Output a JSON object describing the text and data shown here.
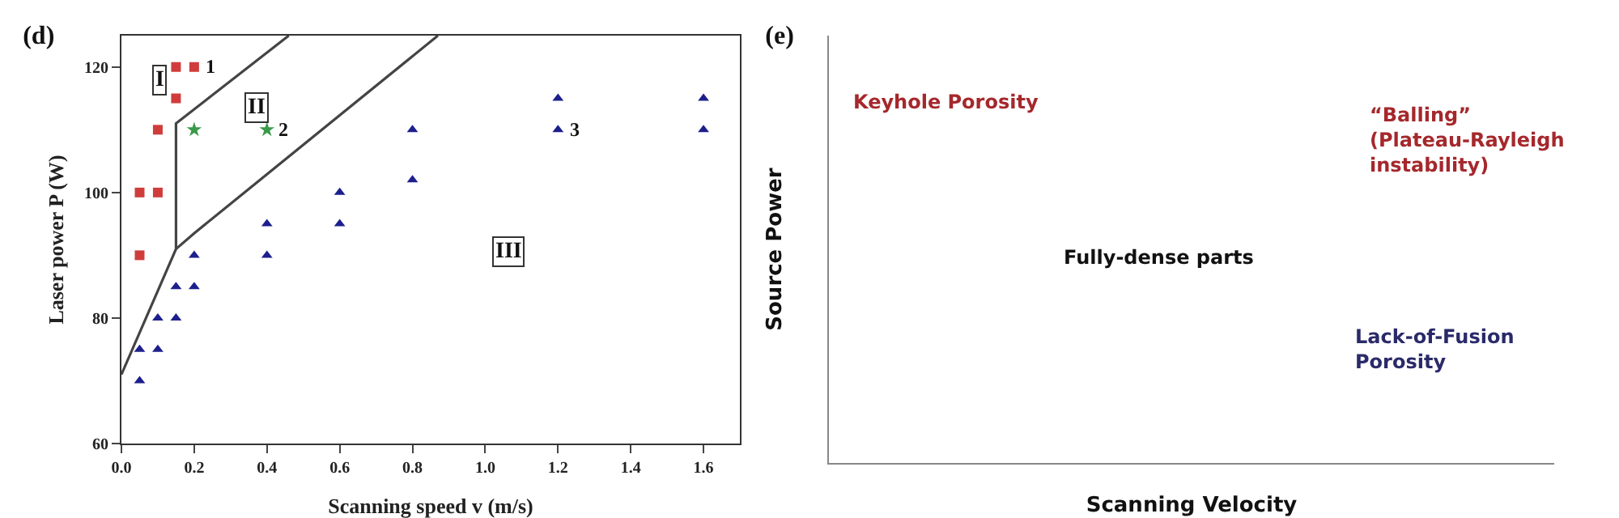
{
  "chart_data": [
    {
      "type": "scatter",
      "title": "(d)",
      "xlabel": "Scanning speed v (m/s)",
      "ylabel": "Laser power P (W)",
      "xlim": [
        0,
        1.7
      ],
      "xticks": [
        {
          "value": 0,
          "label": "0.0"
        },
        0.2,
        0.4,
        0.6,
        0.8,
        {
          "value": 1,
          "label": "1.0"
        },
        1.2,
        1.4,
        1.6
      ],
      "ylim": [
        60,
        125
      ],
      "yticks": [
        60,
        80,
        100,
        120
      ],
      "grid": false,
      "series": [
        {
          "color": "#d03c3c",
          "marker": "square",
          "x": [
            0.05,
            0.05,
            0.1,
            0.1,
            0.15,
            0.15,
            0.2
          ],
          "values": [
            90,
            100,
            100,
            110,
            115,
            120,
            120
          ]
        },
        {
          "color": "#3a9a4a",
          "marker": "star",
          "x": [
            0.2,
            0.4
          ],
          "values": [
            110,
            110
          ]
        },
        {
          "color": "#1c1f8c",
          "marker": "triangle",
          "x": [
            0.05,
            0.05,
            0.1,
            0.1,
            0.15,
            0.15,
            0.2,
            0.2,
            0.4,
            0.4,
            0.6,
            0.6,
            0.8,
            0.8,
            1.2,
            1.2,
            1.6,
            1.6
          ],
          "values": [
            70,
            75,
            75,
            80,
            80,
            85,
            85,
            90,
            90,
            95,
            95,
            100,
            102,
            110,
            110,
            115,
            110,
            115
          ]
        },
        {
          "type": "line",
          "color": "#444444",
          "marker": "none",
          "line_style": "solid",
          "x": [
            0,
            0.15,
            0.15,
            0.46
          ],
          "values": [
            71,
            91,
            111,
            125
          ]
        },
        {
          "type": "line",
          "color": "#444444",
          "marker": "none",
          "line_style": "solid",
          "x": [
            0.15,
            0.2,
            0.87
          ],
          "values": [
            91,
            93.5,
            125
          ]
        }
      ],
      "annotations": [
        {
          "text": "1",
          "x": 0.2,
          "y": 120
        },
        {
          "text": "2",
          "x": 0.4,
          "y": 110
        },
        {
          "text": "3",
          "x": 1.2,
          "y": 110
        },
        "I",
        "II",
        "III"
      ]
    },
    {
      "type": "other",
      "title": "(e)",
      "xlabel": "Scanning Velocity",
      "ylabel": "Source Power",
      "annotations": [
        "Keyhole Porosity",
        "“Balling” (Plateau-Rayleigh instability)",
        "Fully-dense parts",
        "Lack-of-Fusion Porosity"
      ]
    }
  ]
}
